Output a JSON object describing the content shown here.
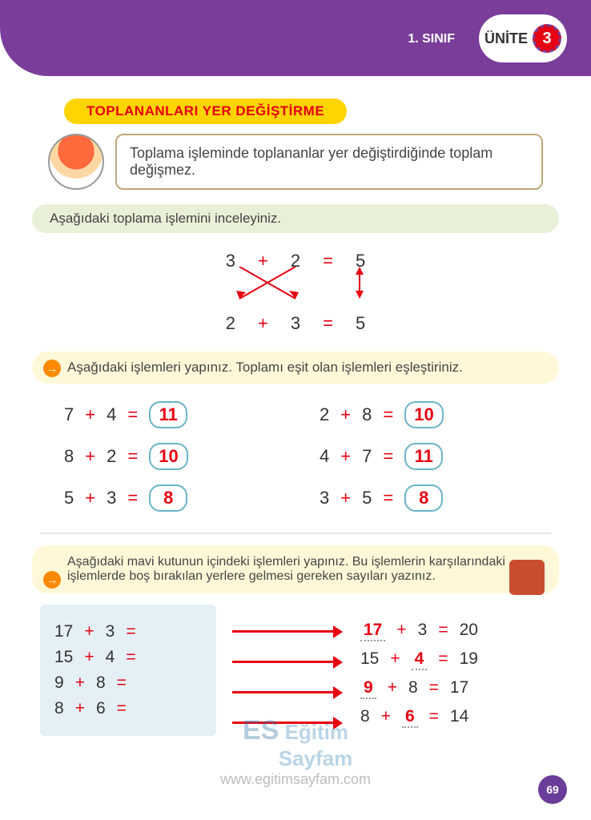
{
  "header": {
    "grade": "1. SINIF",
    "unit_label": "ÜNİTE",
    "unit_number": "3"
  },
  "section_title": "TOPLANANLARI YER DEĞİŞTİRME",
  "intro_speech": "Toplama işleminde toplananlar yer değiştirdiğinde toplam değişmez.",
  "sub_banner": "Aşağıdaki toplama işlemini inceleyiniz.",
  "example": {
    "row1": {
      "a": "3",
      "b": "2",
      "eq": "=",
      "r": "5"
    },
    "row2": {
      "a": "2",
      "b": "3",
      "eq": "=",
      "r": "5"
    },
    "arrow_color": "#e60012"
  },
  "task1_text": "Aşağıdaki işlemleri yapınız. Toplamı eşit olan işlemleri eşleştiriniz.",
  "problems": [
    {
      "a": "7",
      "b": "4",
      "ans": "11"
    },
    {
      "a": "2",
      "b": "8",
      "ans": "10"
    },
    {
      "a": "8",
      "b": "2",
      "ans": "10"
    },
    {
      "a": "4",
      "b": "7",
      "ans": "11"
    },
    {
      "a": "5",
      "b": "3",
      "ans": "8"
    },
    {
      "a": "3",
      "b": "5",
      "ans": "8"
    }
  ],
  "task2_text": "Aşağıdaki mavi kutunun içindeki işlemleri yapınız. Bu işlemlerin karşılarındaki işlemlerde boş bırakılan yerlere gelmesi gereken sayıları yazınız.",
  "bluebox": [
    {
      "a": "17",
      "b": "3"
    },
    {
      "a": "15",
      "b": "4"
    },
    {
      "a": "9",
      "b": "8"
    },
    {
      "a": "8",
      "b": "6"
    }
  ],
  "right_rows": [
    {
      "f": "17",
      "s": "3",
      "r": "20",
      "fill_first": true
    },
    {
      "f": "15",
      "s": "4",
      "r": "19",
      "fill_first": false
    },
    {
      "f": "9",
      "s": "8",
      "r": "17",
      "fill_first": true
    },
    {
      "f": "8",
      "s": "6",
      "r": "14",
      "fill_first": false
    }
  ],
  "ops": {
    "plus": "+",
    "eq": "="
  },
  "watermark": {
    "brand_top": "Eğitim",
    "brand_bottom": "Sayfam",
    "url": "www.egitimsayfam.com"
  },
  "page_number": "69",
  "colors": {
    "header_bg": "#7a3d9a",
    "title_bg": "#ffd400",
    "title_fg": "#e60012",
    "op_color": "#e60012",
    "box_border": "#6ab4c9",
    "bluebox_bg": "#e4f0f5",
    "banner1_bg": "#e8f0d8",
    "banner2_bg": "#fff8d8"
  }
}
